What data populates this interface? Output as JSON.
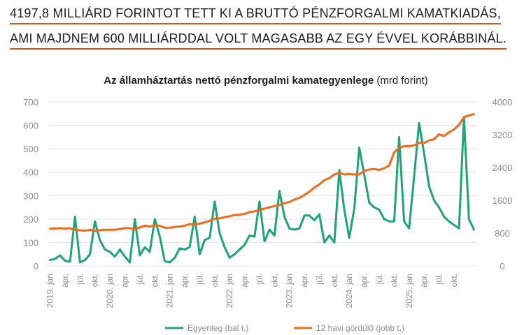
{
  "headline": {
    "line1": "4197,8 MILLIÁRD FORINTOT TETT KI A BRUTTÓ PÉNZFORGALMI KAMATKIADÁS,",
    "line2": "AMI MAJDNEM 600 MILLIÁRDDAL VOLT MAGASABB AZ EGY ÉVVEL KORÁBBINÁL."
  },
  "colors": {
    "accent": "#e8501a",
    "green": "#1fa37a",
    "orange": "#f26a1b",
    "grid": "#e3e3e3"
  },
  "chart_data": {
    "type": "line",
    "title_bold": "Az államháztartás nettó pénzforgalmi kamategyenlege",
    "title_unit": " (mrd forint)",
    "ylim_left": [
      0,
      700
    ],
    "yticks_left": [
      "0",
      "100",
      "200",
      "300",
      "400",
      "500",
      "600",
      "700"
    ],
    "ylim_right": [
      0,
      4000
    ],
    "yticks_right": [
      "0",
      "800",
      "1600",
      "2400",
      "3200",
      "4000"
    ],
    "x_tick_labels": [
      "2019. jan",
      "ápr.",
      "júl.",
      "okt.",
      "2020. jan",
      "ápr.",
      "júl.",
      "okt.",
      "2021. jan",
      "ápr.",
      "júl.",
      "okt.",
      "2022. jan",
      "ápr.",
      "júl.",
      "okt.",
      "2023. jan",
      "ápr.",
      "júl.",
      "okt.",
      "2024. jan",
      "ápr.",
      "júl.",
      "okt.",
      "2025. jan",
      "ápr.",
      "júl.",
      "okt."
    ],
    "grid": true,
    "legend_position": "bottom",
    "series": [
      {
        "name": "Egyenleg (bal t.)",
        "axis": "left",
        "color": "#1fa37a",
        "values": [
          25,
          30,
          45,
          22,
          18,
          210,
          15,
          25,
          50,
          190,
          110,
          70,
          60,
          40,
          70,
          40,
          15,
          200,
          45,
          80,
          60,
          200,
          125,
          20,
          15,
          35,
          75,
          70,
          80,
          210,
          50,
          110,
          120,
          275,
          140,
          80,
          35,
          50,
          70,
          90,
          130,
          125,
          275,
          105,
          155,
          130,
          320,
          210,
          160,
          155,
          160,
          215,
          215,
          195,
          220,
          100,
          130,
          100,
          410,
          240,
          120,
          245,
          505,
          390,
          270,
          250,
          240,
          200,
          190,
          190,
          550,
          190,
          160,
          380,
          610,
          480,
          340,
          280,
          250,
          210,
          190,
          175,
          160,
          635,
          200,
          155
        ]
      },
      {
        "name": "12 havi gördülő (jobb t.)",
        "axis": "right",
        "color": "#f26a1b",
        "values": [
          910,
          910,
          920,
          910,
          920,
          880,
          870,
          860,
          880,
          860,
          870,
          880,
          880,
          880,
          900,
          920,
          920,
          900,
          940,
          980,
          960,
          990,
          980,
          930,
          930,
          950,
          960,
          980,
          1020,
          1020,
          1030,
          1060,
          1100,
          1150,
          1160,
          1190,
          1210,
          1240,
          1250,
          1270,
          1310,
          1330,
          1360,
          1400,
          1430,
          1460,
          1490,
          1530,
          1560,
          1620,
          1660,
          1730,
          1810,
          1910,
          1990,
          2090,
          2140,
          2230,
          2270,
          2230,
          2240,
          2230,
          2230,
          2320,
          2350,
          2360,
          2340,
          2380,
          2450,
          2770,
          2880,
          2920,
          2920,
          2940,
          3000,
          3000,
          3060,
          3090,
          3210,
          3170,
          3260,
          3330,
          3440,
          3630,
          3670,
          3700
        ]
      }
    ]
  }
}
